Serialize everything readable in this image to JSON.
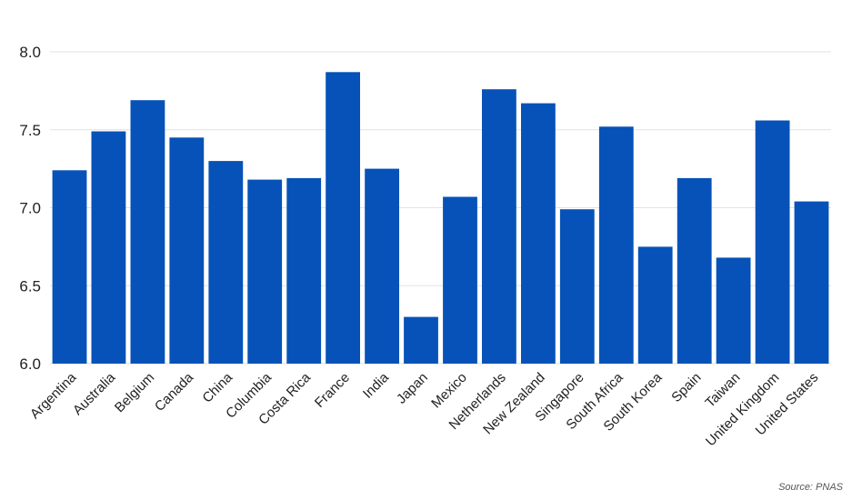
{
  "chart_data": {
    "type": "bar",
    "title": "",
    "xlabel": "",
    "ylabel": "",
    "categories": [
      "Argentina",
      "Australia",
      "Belgium",
      "Canada",
      "China",
      "Columbia",
      "Costa Rica",
      "France",
      "India",
      "Japan",
      "Mexico",
      "Netherlands",
      "New Zealand",
      "Singapore",
      "South Africa",
      "South Korea",
      "Spain",
      "Taiwan",
      "United Kingdom",
      "United States"
    ],
    "values": [
      7.24,
      7.49,
      7.69,
      7.45,
      7.3,
      7.18,
      7.19,
      7.87,
      7.25,
      6.3,
      7.07,
      7.76,
      7.67,
      6.99,
      7.52,
      6.75,
      7.19,
      6.68,
      7.56,
      7.04
    ],
    "ylim": [
      6.0,
      8.0
    ],
    "yticks": [
      "6.0",
      "6.5",
      "7.0",
      "7.5",
      "8.0"
    ],
    "grid": true,
    "bar_color": "#0652b8",
    "grid_color": "#e2e2e2"
  },
  "source": "Source: PNAS"
}
